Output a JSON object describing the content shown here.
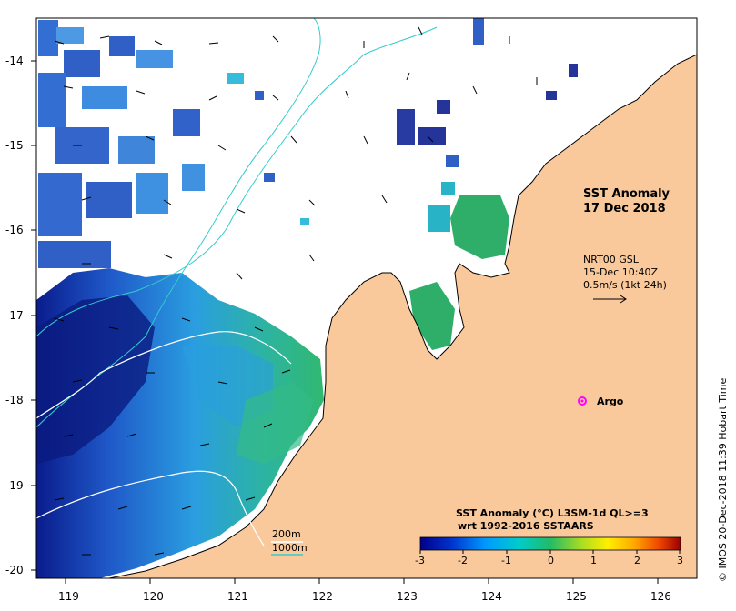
{
  "map": {
    "lon_ticks": [
      "119",
      "120",
      "121",
      "122",
      "123",
      "124",
      "125",
      "126"
    ],
    "lat_ticks": [
      "-14",
      "-15",
      "-16",
      "-17",
      "-18",
      "-19",
      "-20"
    ],
    "colors": {
      "land": "#f9c99c",
      "cloud_gap": "#ffffff",
      "bathymetry_200m": "#ffffff",
      "bathymetry_1000m": "#33cccc",
      "argo_marker": "#ff00ff"
    }
  },
  "annotations": {
    "title_line1": "SST Anomaly",
    "title_line2": "17 Dec 2018",
    "currents_line1": "NRT00 GSL",
    "currents_line2": "15-Dec 10:40Z",
    "currents_line3": "0.5m/s (1kt 24h)",
    "argo_label": "Argo",
    "bathy_200": "200m",
    "bathy_1000": "1000m",
    "side_credit": "© IMOS 20-Dec-2018 11:39 Hobart Time"
  },
  "colorbar": {
    "title_line1": "SST Anomaly (°C) L3SM-1d QL>=3",
    "title_line2": "wrt 1992-2016 SSTAARS",
    "ticks": [
      "-3",
      "-2",
      "-1",
      "0",
      "1",
      "2",
      "3"
    ],
    "range": [
      -3,
      3
    ],
    "stops": [
      "#00008b",
      "#0033cc",
      "#0099ff",
      "#00cccc",
      "#22bb66",
      "#aadd22",
      "#ffee00",
      "#ffaa00",
      "#ee4400",
      "#990000"
    ]
  }
}
